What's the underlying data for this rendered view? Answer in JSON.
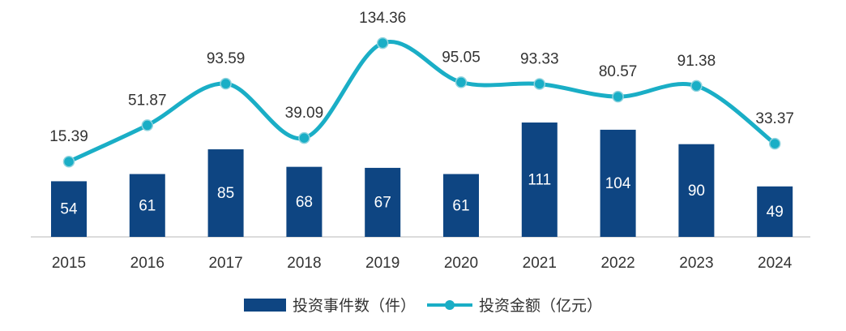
{
  "chart_data": {
    "type": "bar",
    "categories": [
      "2015",
      "2016",
      "2017",
      "2018",
      "2019",
      "2020",
      "2021",
      "2022",
      "2023",
      "2024"
    ],
    "series": [
      {
        "name": "投资事件数（件）",
        "type": "bar",
        "values": [
          54,
          61,
          85,
          68,
          67,
          61,
          111,
          104,
          90,
          49
        ],
        "labels": [
          "54",
          "61",
          "85",
          "68",
          "67",
          "61",
          "111",
          "104",
          "90",
          "49"
        ],
        "color": "#0e4582"
      },
      {
        "name": "投资金额（亿元）",
        "type": "line",
        "values": [
          15.39,
          51.87,
          93.59,
          39.09,
          134.36,
          95.05,
          93.33,
          80.57,
          91.38,
          33.37
        ],
        "labels": [
          "15.39",
          "51.87",
          "93.59",
          "39.09",
          "134.36",
          "95.05",
          "93.33",
          "80.57",
          "91.38",
          "33.37"
        ],
        "color": "#1aaec6",
        "smooth": true
      }
    ],
    "legend": "bottom-center",
    "grid": false
  }
}
